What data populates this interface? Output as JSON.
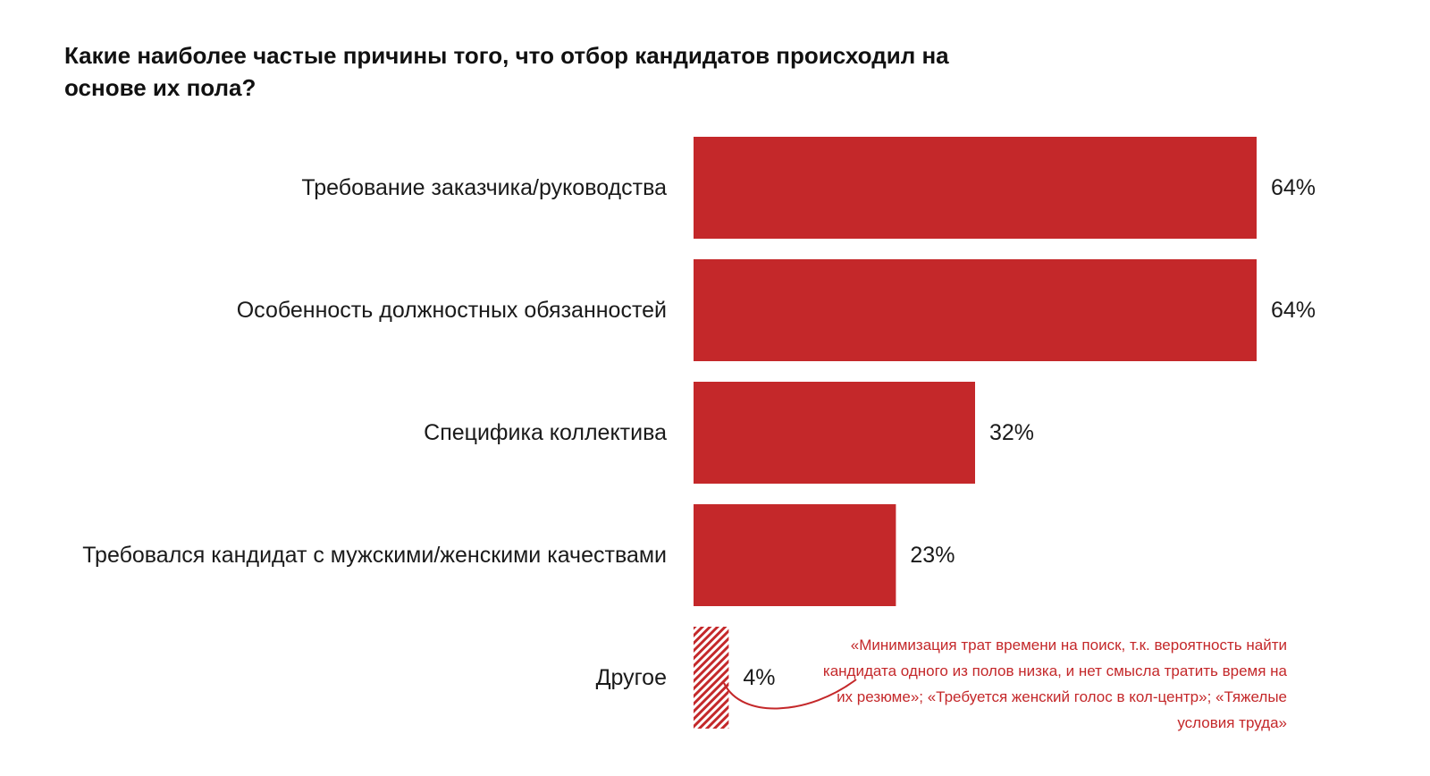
{
  "chart_data": {
    "type": "bar",
    "orientation": "horizontal",
    "title": "Какие наиболее частые причины того, что отбор кандидатов происходил на основе их пола?",
    "categories": [
      "Требование заказчика/руководства",
      "Особенность должностных обязанностей",
      "Специфика коллектива",
      "Требовался кандидат с мужскими/женскими качествами",
      "Другое"
    ],
    "values": [
      64,
      64,
      32,
      23,
      4
    ],
    "value_labels": [
      "64%",
      "64%",
      "32%",
      "23%",
      "4%"
    ],
    "patterned": [
      false,
      false,
      false,
      false,
      true
    ],
    "xlim": [
      0,
      64
    ],
    "xlabel": "",
    "ylabel": "",
    "grid": false,
    "bar_color": "#c4282a",
    "annotation": "«Минимизация трат времени на поиск, т.к. вероятность найти кандидата одного из полов низка, и нет смысла тратить время на их резюме»; «Требуется женский голос в кол-центр»; «Тяжелые условия труда»"
  }
}
